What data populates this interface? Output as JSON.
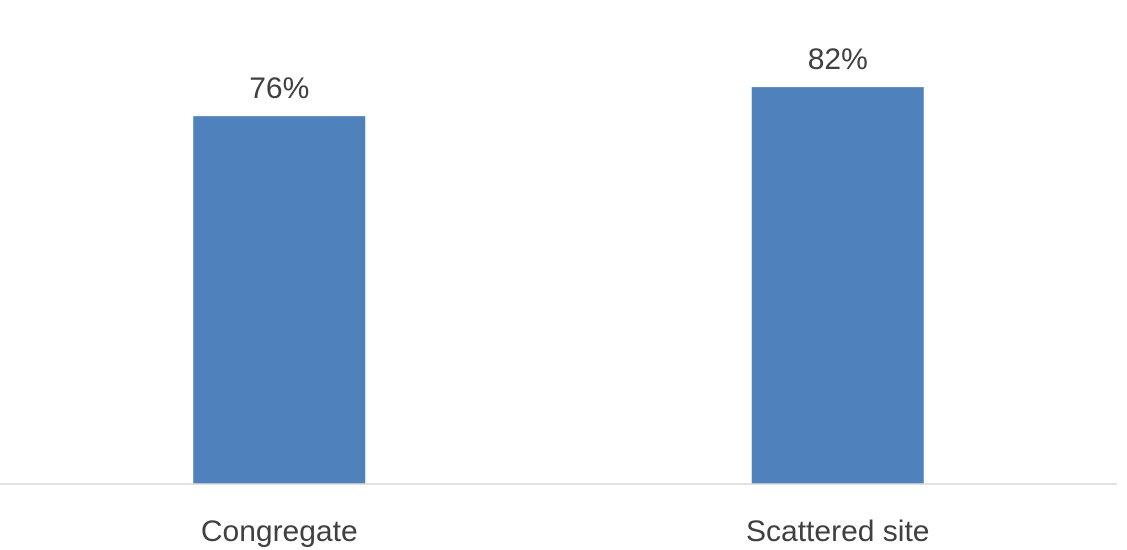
{
  "chart_data": {
    "type": "bar",
    "categories": [
      "Congregate",
      "Scattered site"
    ],
    "values": [
      76,
      82
    ],
    "data_labels": [
      "76%",
      "82%"
    ],
    "title": "",
    "xlabel": "",
    "ylabel": "",
    "ylim": [
      0,
      100
    ],
    "grid": false,
    "legend": "none",
    "colors": {
      "bar": "#4F81BD",
      "axis": "#D9D9D9",
      "text": "#404040"
    }
  }
}
